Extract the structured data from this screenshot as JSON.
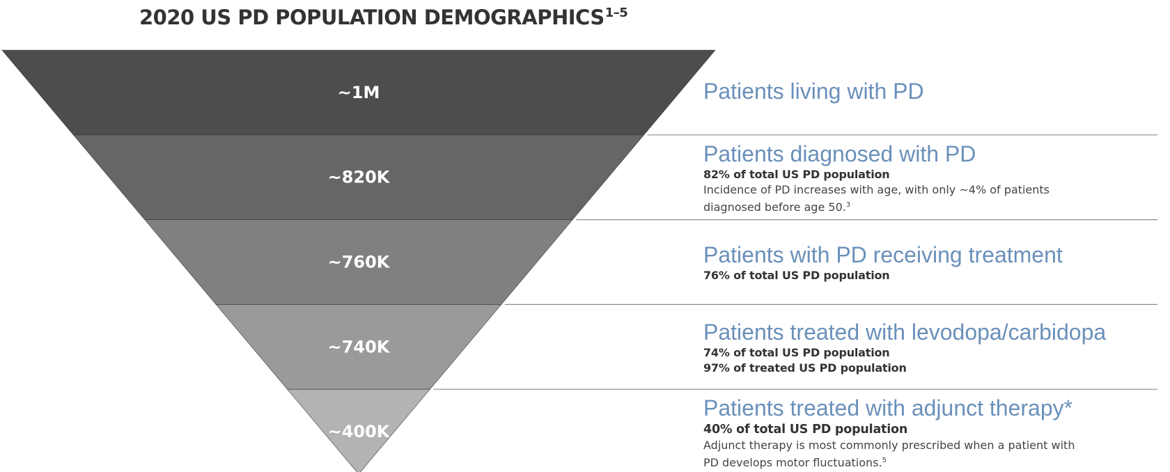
{
  "title": "2020 US PD POPULATION DEMOGRAPHICS",
  "title_superscript": "1–5",
  "colors": {
    "tiers": [
      "#4d4d4d",
      "#666666",
      "#808080",
      "#9a9a9a",
      "#b3b3b3"
    ],
    "heading": "#6a90ba",
    "divider": "#8c8c8c",
    "text": "#333333"
  },
  "tiers": [
    {
      "value": "~1M",
      "heading": "Patients living with PD",
      "lines": [],
      "note": "",
      "note_ref": ""
    },
    {
      "value": "~820K",
      "heading": "Patients diagnosed with PD",
      "lines": [
        "82% of total US PD population"
      ],
      "note": "Incidence of PD increases with age, with only ~4% of patients diagnosed before age 50.",
      "note_ref": "3"
    },
    {
      "value": "~760K",
      "heading": "Patients with PD receiving treatment",
      "lines": [
        "76% of total US PD population"
      ],
      "note": "",
      "note_ref": ""
    },
    {
      "value": "~740K",
      "heading": "Patients treated with levodopa/carbidopa",
      "lines": [
        "74% of total US PD population",
        "97% of treated US PD population"
      ],
      "note": "",
      "note_ref": ""
    },
    {
      "value": "~400K",
      "heading": "Patients treated with adjunct therapy*",
      "lines": [
        "40% of total US PD population"
      ],
      "note": "Adjunct therapy is most commonly prescribed when a patient with PD develops motor fluctuations.",
      "note_ref": "5"
    }
  ]
}
